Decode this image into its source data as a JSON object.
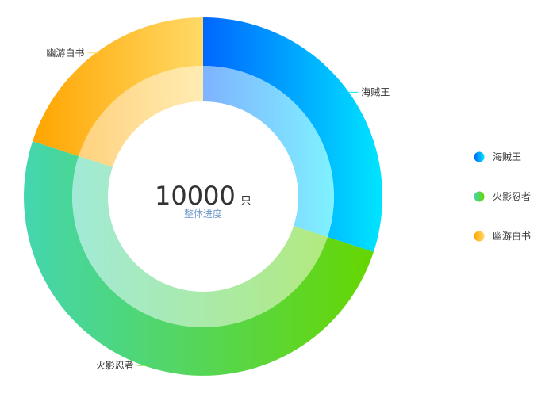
{
  "chart_data": {
    "type": "pie",
    "categories": [
      "海贼王",
      "火影忍者",
      "幽游白书"
    ],
    "values": [
      30,
      50,
      20
    ],
    "total": {
      "value": "10000",
      "unit": "只",
      "caption": "整体进度"
    },
    "legend": {
      "placement": "right",
      "entries": [
        "海贼王",
        "火影忍者",
        "幽游白书"
      ]
    },
    "colors": [
      {
        "from": "#0066ff",
        "to": "#00e5ff"
      },
      {
        "from": "#44d6b0",
        "to": "#66d600"
      },
      {
        "from": "#ffa500",
        "to": "#ffd966"
      }
    ]
  }
}
